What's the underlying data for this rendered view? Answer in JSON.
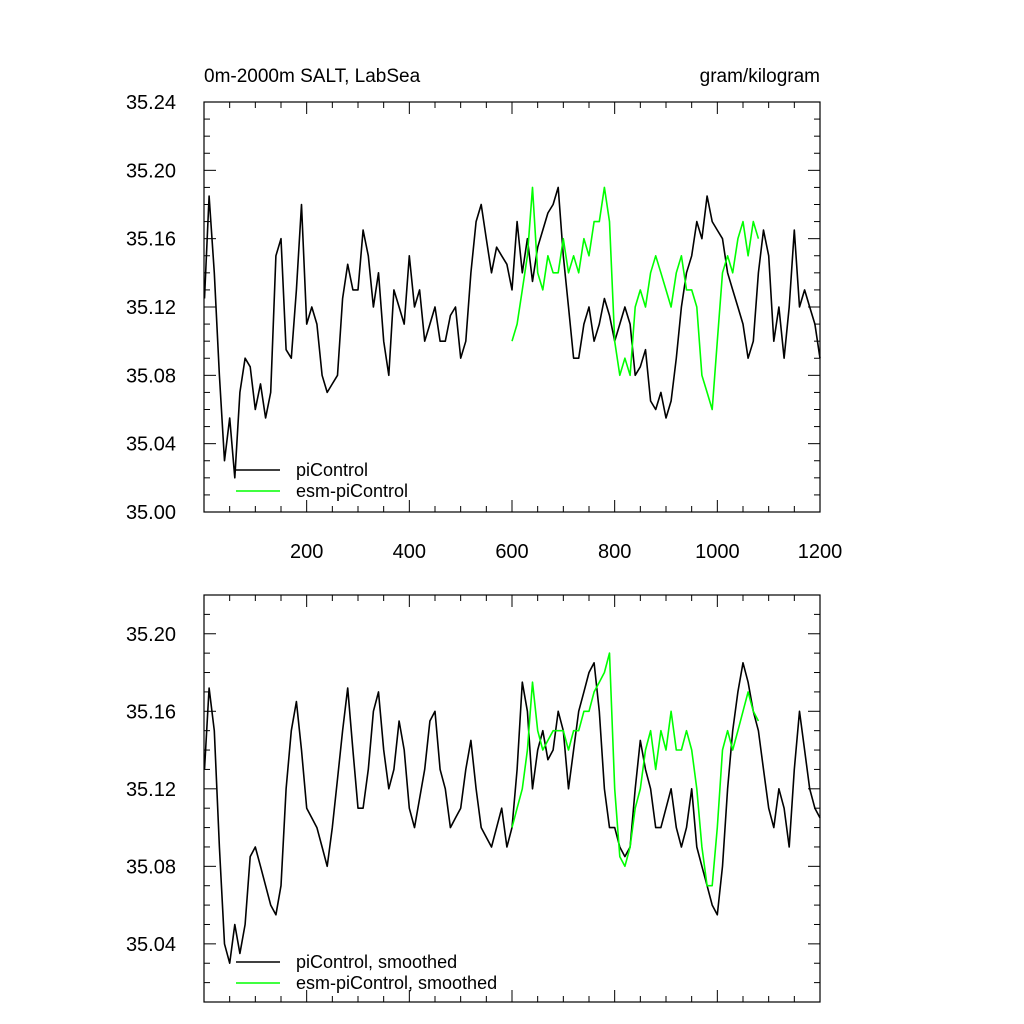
{
  "chart_data": [
    {
      "type": "line",
      "title": "0m-2000m SALT, LabSea",
      "units": "gram/kilogram",
      "xlim": [
        0,
        1200
      ],
      "ylim": [
        35.0,
        35.24
      ],
      "x_ticks": [
        200,
        400,
        600,
        800,
        1000,
        1200
      ],
      "x_tick_labels": [
        "200",
        "400",
        "600",
        "800",
        "1000",
        "1200"
      ],
      "y_ticks": [
        35.0,
        35.04,
        35.08,
        35.12,
        35.16,
        35.2,
        35.24
      ],
      "y_tick_labels": [
        "35.00",
        "35.04",
        "35.08",
        "35.12",
        "35.16",
        "35.20",
        "35.24"
      ],
      "grid": false,
      "legend_position": "bottom-left",
      "series": [
        {
          "name": "piControl",
          "color": "#000000",
          "x": [
            1,
            10,
            20,
            30,
            40,
            50,
            60,
            70,
            80,
            90,
            100,
            110,
            120,
            130,
            140,
            150,
            160,
            170,
            180,
            190,
            200,
            210,
            220,
            230,
            240,
            250,
            260,
            270,
            280,
            290,
            300,
            310,
            320,
            330,
            340,
            350,
            360,
            370,
            380,
            390,
            400,
            410,
            420,
            430,
            440,
            450,
            460,
            470,
            480,
            490,
            500,
            510,
            520,
            530,
            540,
            550,
            560,
            570,
            580,
            590,
            600,
            610,
            620,
            630,
            640,
            650,
            660,
            670,
            680,
            690,
            700,
            710,
            720,
            730,
            740,
            750,
            760,
            770,
            780,
            790,
            800,
            810,
            820,
            830,
            840,
            850,
            860,
            870,
            880,
            890,
            900,
            910,
            920,
            930,
            940,
            950,
            960,
            970,
            980,
            990,
            1000,
            1010,
            1020,
            1030,
            1040,
            1050,
            1060,
            1070,
            1080,
            1090,
            1100,
            1110,
            1120,
            1130,
            1140,
            1150,
            1160,
            1170,
            1180,
            1190,
            1200
          ],
          "values": [
            35.125,
            35.185,
            35.14,
            35.08,
            35.03,
            35.055,
            35.02,
            35.07,
            35.09,
            35.085,
            35.06,
            35.075,
            35.055,
            35.07,
            35.15,
            35.16,
            35.095,
            35.09,
            35.13,
            35.18,
            35.11,
            35.12,
            35.11,
            35.08,
            35.07,
            35.075,
            35.08,
            35.125,
            35.145,
            35.13,
            35.13,
            35.165,
            35.15,
            35.12,
            35.14,
            35.1,
            35.08,
            35.13,
            35.12,
            35.11,
            35.15,
            35.12,
            35.13,
            35.1,
            35.11,
            35.12,
            35.1,
            35.1,
            35.115,
            35.12,
            35.09,
            35.1,
            35.14,
            35.17,
            35.18,
            35.16,
            35.14,
            35.155,
            35.15,
            35.145,
            35.13,
            35.17,
            35.14,
            35.16,
            35.135,
            35.155,
            35.165,
            35.175,
            35.18,
            35.19,
            35.15,
            35.12,
            35.09,
            35.09,
            35.11,
            35.12,
            35.1,
            35.11,
            35.125,
            35.115,
            35.1,
            35.11,
            35.12,
            35.11,
            35.08,
            35.085,
            35.095,
            35.065,
            35.06,
            35.07,
            35.055,
            35.065,
            35.09,
            35.12,
            35.14,
            35.15,
            35.17,
            35.16,
            35.185,
            35.17,
            35.165,
            35.16,
            35.14,
            35.13,
            35.12,
            35.11,
            35.09,
            35.1,
            35.14,
            35.165,
            35.15,
            35.1,
            35.12,
            35.09,
            35.12,
            35.165,
            35.12,
            35.13,
            35.12,
            35.11,
            35.09
          ]
        },
        {
          "name": "esm-piControl",
          "color": "#00ff00",
          "x": [
            600,
            610,
            620,
            630,
            640,
            650,
            660,
            670,
            680,
            690,
            700,
            710,
            720,
            730,
            740,
            750,
            760,
            770,
            780,
            790,
            800,
            810,
            820,
            830,
            840,
            850,
            860,
            870,
            880,
            890,
            900,
            910,
            920,
            930,
            940,
            950,
            960,
            970,
            980,
            990,
            1000,
            1010,
            1020,
            1030,
            1040,
            1050,
            1060,
            1070,
            1080
          ],
          "values": [
            35.1,
            35.11,
            35.13,
            35.15,
            35.19,
            35.14,
            35.13,
            35.15,
            35.14,
            35.14,
            35.16,
            35.14,
            35.15,
            35.14,
            35.16,
            35.15,
            35.17,
            35.17,
            35.19,
            35.17,
            35.1,
            35.08,
            35.09,
            35.08,
            35.12,
            35.13,
            35.12,
            35.14,
            35.15,
            35.14,
            35.13,
            35.12,
            35.14,
            35.15,
            35.13,
            35.13,
            35.12,
            35.08,
            35.07,
            35.06,
            35.1,
            35.14,
            35.15,
            35.14,
            35.16,
            35.17,
            35.15,
            35.17,
            35.16
          ]
        }
      ]
    },
    {
      "type": "line",
      "title": "",
      "xlim": [
        0,
        1200
      ],
      "ylim": [
        35.01,
        35.22
      ],
      "x_ticks": [
        200,
        400,
        600,
        800,
        1000,
        1200
      ],
      "x_tick_labels": [],
      "y_ticks": [
        35.04,
        35.08,
        35.12,
        35.16,
        35.2
      ],
      "y_tick_labels": [
        "35.04",
        "35.08",
        "35.12",
        "35.16",
        "35.20"
      ],
      "grid": false,
      "legend_position": "bottom-left",
      "series": [
        {
          "name": "piControl, smoothed",
          "color": "#000000",
          "x": [
            1,
            10,
            20,
            30,
            40,
            50,
            60,
            70,
            80,
            90,
            100,
            110,
            120,
            130,
            140,
            150,
            160,
            170,
            180,
            190,
            200,
            210,
            220,
            230,
            240,
            250,
            260,
            270,
            280,
            290,
            300,
            310,
            320,
            330,
            340,
            350,
            360,
            370,
            380,
            390,
            400,
            410,
            420,
            430,
            440,
            450,
            460,
            470,
            480,
            490,
            500,
            510,
            520,
            530,
            540,
            550,
            560,
            570,
            580,
            590,
            600,
            610,
            620,
            630,
            640,
            650,
            660,
            670,
            680,
            690,
            700,
            710,
            720,
            730,
            740,
            750,
            760,
            770,
            780,
            790,
            800,
            810,
            820,
            830,
            840,
            850,
            860,
            870,
            880,
            890,
            900,
            910,
            920,
            930,
            940,
            950,
            960,
            970,
            980,
            990,
            1000,
            1010,
            1020,
            1030,
            1040,
            1050,
            1060,
            1070,
            1080,
            1090,
            1100,
            1110,
            1120,
            1130,
            1140,
            1150,
            1160,
            1170,
            1180,
            1190,
            1200
          ],
          "values": [
            35.13,
            35.172,
            35.15,
            35.09,
            35.04,
            35.03,
            35.05,
            35.035,
            35.05,
            35.085,
            35.09,
            35.08,
            35.07,
            35.06,
            35.055,
            35.07,
            35.12,
            35.15,
            35.165,
            35.14,
            35.11,
            35.105,
            35.1,
            35.09,
            35.08,
            35.1,
            35.125,
            35.15,
            35.172,
            35.14,
            35.11,
            35.11,
            35.13,
            35.16,
            35.17,
            35.14,
            35.12,
            35.13,
            35.155,
            35.14,
            35.11,
            35.1,
            35.115,
            35.13,
            35.155,
            35.16,
            35.13,
            35.12,
            35.1,
            35.105,
            35.11,
            35.13,
            35.145,
            35.12,
            35.1,
            35.095,
            35.09,
            35.1,
            35.11,
            35.09,
            35.1,
            35.13,
            35.175,
            35.16,
            35.12,
            35.14,
            35.15,
            35.135,
            35.14,
            35.16,
            35.15,
            35.12,
            35.14,
            35.16,
            35.17,
            35.18,
            35.185,
            35.16,
            35.12,
            35.1,
            35.1,
            35.09,
            35.085,
            35.09,
            35.12,
            35.145,
            35.13,
            35.12,
            35.1,
            35.1,
            35.11,
            35.12,
            35.1,
            35.09,
            35.1,
            35.12,
            35.09,
            35.08,
            35.07,
            35.06,
            35.055,
            35.08,
            35.12,
            35.15,
            35.17,
            35.185,
            35.175,
            35.16,
            35.15,
            35.13,
            35.11,
            35.1,
            35.12,
            35.11,
            35.09,
            35.13,
            35.16,
            35.14,
            35.12,
            35.11,
            35.105
          ]
        },
        {
          "name": "esm-piControl, smoothed",
          "color": "#00ff00",
          "x": [
            600,
            610,
            620,
            630,
            640,
            650,
            660,
            670,
            680,
            690,
            700,
            710,
            720,
            730,
            740,
            750,
            760,
            770,
            780,
            790,
            800,
            810,
            820,
            830,
            840,
            850,
            860,
            870,
            880,
            890,
            900,
            910,
            920,
            930,
            940,
            950,
            960,
            970,
            980,
            990,
            1000,
            1010,
            1020,
            1030,
            1040,
            1050,
            1060,
            1070,
            1080
          ],
          "values": [
            35.1,
            35.11,
            35.12,
            35.14,
            35.175,
            35.15,
            35.14,
            35.145,
            35.15,
            35.15,
            35.15,
            35.14,
            35.15,
            35.15,
            35.16,
            35.16,
            35.17,
            35.175,
            35.18,
            35.19,
            35.12,
            35.085,
            35.08,
            35.09,
            35.11,
            35.12,
            35.14,
            35.15,
            35.13,
            35.15,
            35.14,
            35.16,
            35.14,
            35.14,
            35.15,
            35.14,
            35.12,
            35.09,
            35.07,
            35.07,
            35.1,
            35.14,
            35.15,
            35.14,
            35.15,
            35.16,
            35.17,
            35.16,
            35.155
          ]
        }
      ]
    }
  ]
}
